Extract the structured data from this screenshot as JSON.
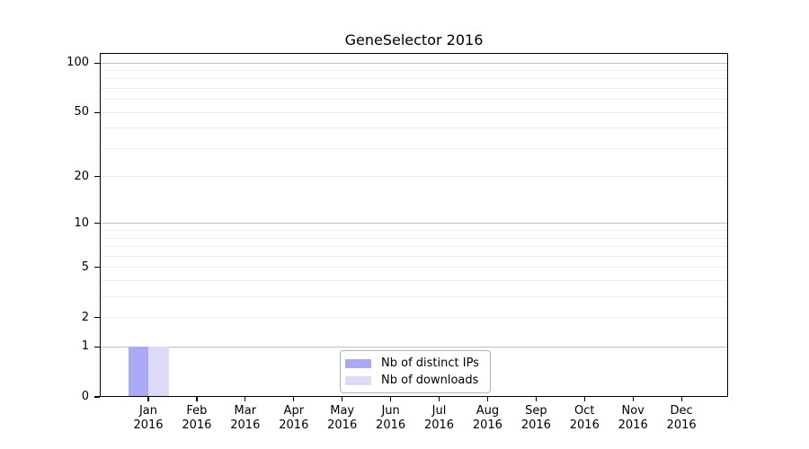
{
  "chart_data": {
    "type": "bar",
    "title": "GeneSelector 2016",
    "categories": [
      {
        "month": "Jan",
        "year": "2016"
      },
      {
        "month": "Feb",
        "year": "2016"
      },
      {
        "month": "Mar",
        "year": "2016"
      },
      {
        "month": "Apr",
        "year": "2016"
      },
      {
        "month": "May",
        "year": "2016"
      },
      {
        "month": "Jun",
        "year": "2016"
      },
      {
        "month": "Jul",
        "year": "2016"
      },
      {
        "month": "Aug",
        "year": "2016"
      },
      {
        "month": "Sep",
        "year": "2016"
      },
      {
        "month": "Oct",
        "year": "2016"
      },
      {
        "month": "Nov",
        "year": "2016"
      },
      {
        "month": "Dec",
        "year": "2016"
      }
    ],
    "series": [
      {
        "name": "Nb of distinct IPs",
        "color": "#a9a9f7",
        "values": [
          1,
          0,
          0,
          0,
          0,
          0,
          0,
          0,
          0,
          0,
          0,
          0
        ]
      },
      {
        "name": "Nb of downloads",
        "color": "#dcdcf8",
        "values": [
          1,
          0,
          0,
          0,
          0,
          0,
          0,
          0,
          0,
          0,
          0,
          0
        ]
      }
    ],
    "y_axis": {
      "scale": "log10(1+x)",
      "ticks": [
        0,
        1,
        2,
        5,
        10,
        20,
        50,
        100
      ],
      "major_gridlines": [
        1,
        10,
        100
      ],
      "minor_gridlines": [
        3,
        4,
        6,
        7,
        8,
        9,
        30,
        40,
        60,
        70,
        80,
        90
      ],
      "ylim": [
        0,
        115
      ]
    },
    "xlabel": "",
    "ylabel": "",
    "grid": true,
    "legend_position": "lower center",
    "colors": {
      "grid_major": "#c3c3c3",
      "grid_minor": "#ececec",
      "axis": "#000000",
      "background": "#ffffff",
      "legend_border": "#b3b3b3"
    }
  }
}
